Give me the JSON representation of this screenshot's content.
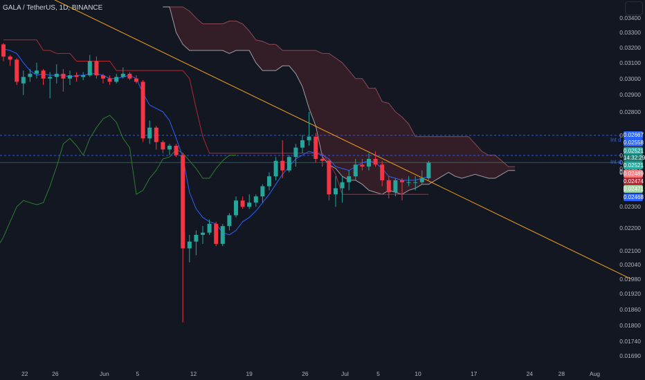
{
  "header": {
    "title": "GALA / TetherUS, 1D, BINANCE"
  },
  "colors": {
    "background": "#131722",
    "up": "#26a69a",
    "down": "#f23645",
    "trendline": "#f7a21b",
    "cloud": "#3a1f27",
    "hline": "#2962ff"
  },
  "chart_data": {
    "type": "candlestick",
    "title": "GALA / TetherUS, 1D, BINANCE",
    "y_scale": "log",
    "ylim": [
      0.01665,
      0.0348
    ],
    "y_ticks": [
      "0.03400",
      "0.03300",
      "0.03200",
      "0.03100",
      "0.03000",
      "0.02900",
      "0.02800",
      "0.02667",
      "0.02558",
      "0.02521",
      "0.02489",
      "0.02474",
      "0.02471",
      "0.02468",
      "0.02300",
      "0.02200",
      "0.02100",
      "0.02040",
      "0.01980",
      "0.01920",
      "0.01860",
      "0.01800",
      "0.01740",
      "0.01690"
    ],
    "x_ticks": [
      "22",
      "26",
      "Jun",
      "5",
      "12",
      "19",
      "26",
      "Jul",
      "5",
      "10",
      "17",
      "24",
      "28",
      "Aug"
    ],
    "price_tags": [
      {
        "text": "0.02667",
        "color": "#2962ff"
      },
      {
        "text": "0.02558",
        "color": "#2962ff"
      },
      {
        "text": "0.02521",
        "color": "#26a69a"
      },
      {
        "text": "14:32:29",
        "color": "#1f7a72"
      },
      {
        "text": "0.02521",
        "color": "#26a69a"
      },
      {
        "text": "0.02489",
        "color": "#f77c80"
      },
      {
        "text": "0.02474",
        "color": "#b22833"
      },
      {
        "text": "0.02471",
        "color": "#a5d6a7"
      },
      {
        "text": "0.02468",
        "color": "#2962ff"
      }
    ],
    "hline_labels": [
      "Int d",
      "Int d"
    ],
    "candles": [
      {
        "o": 0.0322,
        "h": 0.0323,
        "l": 0.0311,
        "c": 0.0314
      },
      {
        "o": 0.0314,
        "h": 0.0315,
        "l": 0.0308,
        "c": 0.0312
      },
      {
        "o": 0.0312,
        "h": 0.0313,
        "l": 0.0296,
        "c": 0.0298
      },
      {
        "o": 0.0297,
        "h": 0.0305,
        "l": 0.029,
        "c": 0.0301
      },
      {
        "o": 0.0301,
        "h": 0.0306,
        "l": 0.0298,
        "c": 0.0303
      },
      {
        "o": 0.0303,
        "h": 0.031,
        "l": 0.03,
        "c": 0.0305
      },
      {
        "o": 0.0305,
        "h": 0.0306,
        "l": 0.0296,
        "c": 0.03
      },
      {
        "o": 0.03,
        "h": 0.0304,
        "l": 0.0288,
        "c": 0.0301
      },
      {
        "o": 0.0301,
        "h": 0.0309,
        "l": 0.0297,
        "c": 0.0303
      },
      {
        "o": 0.0303,
        "h": 0.0306,
        "l": 0.0292,
        "c": 0.03
      },
      {
        "o": 0.03,
        "h": 0.0305,
        "l": 0.0296,
        "c": 0.0302
      },
      {
        "o": 0.0302,
        "h": 0.0304,
        "l": 0.0298,
        "c": 0.0301
      },
      {
        "o": 0.0301,
        "h": 0.0304,
        "l": 0.0299,
        "c": 0.0302
      },
      {
        "o": 0.0302,
        "h": 0.0315,
        "l": 0.0301,
        "c": 0.0311
      },
      {
        "o": 0.0311,
        "h": 0.0314,
        "l": 0.03,
        "c": 0.0302
      },
      {
        "o": 0.0302,
        "h": 0.0303,
        "l": 0.0297,
        "c": 0.03
      },
      {
        "o": 0.03,
        "h": 0.0302,
        "l": 0.0296,
        "c": 0.0298
      },
      {
        "o": 0.0298,
        "h": 0.0303,
        "l": 0.0297,
        "c": 0.0301
      },
      {
        "o": 0.0301,
        "h": 0.0307,
        "l": 0.03,
        "c": 0.0303
      },
      {
        "o": 0.0303,
        "h": 0.0304,
        "l": 0.0299,
        "c": 0.03
      },
      {
        "o": 0.03,
        "h": 0.0302,
        "l": 0.0297,
        "c": 0.0298
      },
      {
        "o": 0.0298,
        "h": 0.0299,
        "l": 0.0263,
        "c": 0.0265
      },
      {
        "o": 0.0265,
        "h": 0.0275,
        "l": 0.0262,
        "c": 0.0271
      },
      {
        "o": 0.0271,
        "h": 0.0272,
        "l": 0.0259,
        "c": 0.0263
      },
      {
        "o": 0.0263,
        "h": 0.0264,
        "l": 0.0257,
        "c": 0.0259
      },
      {
        "o": 0.0259,
        "h": 0.0262,
        "l": 0.0256,
        "c": 0.0261
      },
      {
        "o": 0.0261,
        "h": 0.0262,
        "l": 0.0255,
        "c": 0.0256
      },
      {
        "o": 0.0256,
        "h": 0.0257,
        "l": 0.0181,
        "c": 0.0211
      },
      {
        "o": 0.0211,
        "h": 0.0217,
        "l": 0.0205,
        "c": 0.0214
      },
      {
        "o": 0.0214,
        "h": 0.0219,
        "l": 0.0208,
        "c": 0.0217
      },
      {
        "o": 0.0217,
        "h": 0.0221,
        "l": 0.0213,
        "c": 0.0218
      },
      {
        "o": 0.0218,
        "h": 0.0224,
        "l": 0.0217,
        "c": 0.0222
      },
      {
        "o": 0.0222,
        "h": 0.0223,
        "l": 0.0212,
        "c": 0.0213
      },
      {
        "o": 0.0213,
        "h": 0.0222,
        "l": 0.0212,
        "c": 0.0221
      },
      {
        "o": 0.0221,
        "h": 0.0227,
        "l": 0.0219,
        "c": 0.0226
      },
      {
        "o": 0.0226,
        "h": 0.0235,
        "l": 0.0225,
        "c": 0.0233
      },
      {
        "o": 0.0233,
        "h": 0.0235,
        "l": 0.0229,
        "c": 0.023
      },
      {
        "o": 0.023,
        "h": 0.0236,
        "l": 0.0229,
        "c": 0.0232
      },
      {
        "o": 0.0232,
        "h": 0.0236,
        "l": 0.023,
        "c": 0.0235
      },
      {
        "o": 0.0235,
        "h": 0.0241,
        "l": 0.0232,
        "c": 0.024
      },
      {
        "o": 0.024,
        "h": 0.0247,
        "l": 0.0238,
        "c": 0.0245
      },
      {
        "o": 0.0245,
        "h": 0.0255,
        "l": 0.0243,
        "c": 0.0253
      },
      {
        "o": 0.0253,
        "h": 0.0264,
        "l": 0.0244,
        "c": 0.0248
      },
      {
        "o": 0.0248,
        "h": 0.0256,
        "l": 0.0247,
        "c": 0.0255
      },
      {
        "o": 0.0255,
        "h": 0.0262,
        "l": 0.025,
        "c": 0.026
      },
      {
        "o": 0.026,
        "h": 0.0267,
        "l": 0.0257,
        "c": 0.0264
      },
      {
        "o": 0.0264,
        "h": 0.028,
        "l": 0.0261,
        "c": 0.0266
      },
      {
        "o": 0.0266,
        "h": 0.0268,
        "l": 0.0252,
        "c": 0.0254
      },
      {
        "o": 0.0254,
        "h": 0.0256,
        "l": 0.025,
        "c": 0.0253
      },
      {
        "o": 0.0253,
        "h": 0.0254,
        "l": 0.0233,
        "c": 0.0236
      },
      {
        "o": 0.0236,
        "h": 0.0245,
        "l": 0.023,
        "c": 0.0239
      },
      {
        "o": 0.0239,
        "h": 0.0245,
        "l": 0.0232,
        "c": 0.0242
      },
      {
        "o": 0.0242,
        "h": 0.0248,
        "l": 0.0238,
        "c": 0.0245
      },
      {
        "o": 0.0245,
        "h": 0.0254,
        "l": 0.0243,
        "c": 0.0251
      },
      {
        "o": 0.0251,
        "h": 0.0254,
        "l": 0.0248,
        "c": 0.025
      },
      {
        "o": 0.025,
        "h": 0.0257,
        "l": 0.0248,
        "c": 0.0254
      },
      {
        "o": 0.0254,
        "h": 0.0258,
        "l": 0.025,
        "c": 0.0251
      },
      {
        "o": 0.0251,
        "h": 0.0253,
        "l": 0.024,
        "c": 0.0243
      },
      {
        "o": 0.0243,
        "h": 0.0245,
        "l": 0.0234,
        "c": 0.0237
      },
      {
        "o": 0.0237,
        "h": 0.0244,
        "l": 0.0235,
        "c": 0.0243
      },
      {
        "o": 0.0243,
        "h": 0.0244,
        "l": 0.0233,
        "c": 0.0242
      },
      {
        "o": 0.0242,
        "h": 0.0245,
        "l": 0.024,
        "c": 0.0242
      },
      {
        "o": 0.0242,
        "h": 0.0245,
        "l": 0.0238,
        "c": 0.0242
      },
      {
        "o": 0.0242,
        "h": 0.0248,
        "l": 0.0241,
        "c": 0.0244
      },
      {
        "o": 0.0244,
        "h": 0.0253,
        "l": 0.0243,
        "c": 0.0252
      }
    ],
    "indicators": {
      "blue_line": [
        0.0319,
        0.0318,
        0.0316,
        0.031,
        0.0305,
        0.0302,
        0.0303,
        0.0302,
        0.0302,
        0.0302,
        0.0301,
        0.0302,
        0.0302,
        0.0303,
        0.0303,
        0.0302,
        0.03,
        0.03,
        0.0301,
        0.0302,
        0.03,
        0.0291,
        0.0284,
        0.0282,
        0.028,
        0.0275,
        0.0265,
        0.0255,
        0.0237,
        0.0229,
        0.0225,
        0.0223,
        0.0222,
        0.0218,
        0.0217,
        0.0219,
        0.0223,
        0.0225,
        0.0228,
        0.0232,
        0.0236,
        0.0241,
        0.0246,
        0.025,
        0.0254,
        0.0256,
        0.0258,
        0.0257,
        0.0256,
        0.0254,
        0.025,
        0.0249,
        0.0248,
        0.025,
        0.0252,
        0.0253,
        0.0252,
        0.0249,
        0.0245,
        0.0244,
        0.0243,
        0.0243,
        0.0243,
        0.0244,
        0.0245
      ],
      "red_line": [
        0.0325,
        0.0325,
        0.0325,
        0.0325,
        0.0325,
        0.0325,
        0.0318,
        0.0318,
        0.0316,
        0.0316,
        0.0316,
        0.0311,
        0.0311,
        0.0311,
        0.0311,
        0.0311,
        0.0311,
        0.0305,
        0.0305,
        0.0305,
        0.0305,
        0.0305,
        0.0305,
        0.0305,
        0.0305,
        0.0305,
        0.0305,
        0.0305,
        0.03,
        0.0282,
        0.0266,
        0.0257,
        0.0257,
        0.0257,
        0.0257,
        0.0257,
        0.0257,
        0.0257,
        0.0257,
        0.0257,
        0.0257,
        0.0257,
        0.0257,
        0.0257,
        0.0257,
        0.0257,
        0.0257,
        0.0257,
        0.0257,
        0.0252,
        0.0246,
        0.0236,
        0.0236,
        0.0236,
        0.0236,
        0.0236,
        0.0236,
        0.0236,
        0.0236,
        0.0236,
        0.0236,
        0.0236,
        0.0236,
        0.0236,
        0.0236
      ],
      "green_line": [
        0.0211,
        0.0216,
        0.0223,
        0.023,
        0.0233,
        0.0232,
        0.0231,
        0.0232,
        0.024,
        0.025,
        0.0262,
        0.0265,
        0.0261,
        0.0256,
        0.0265,
        0.0271,
        0.0276,
        0.0278,
        0.0274,
        0.0265,
        0.026,
        0.0236,
        0.0238,
        0.0244,
        0.0248,
        0.0254,
        0.0255,
        0.0259,
        0.0257,
        0.0253,
        0.0249,
        0.0244,
        0.0244,
        0.0249,
        0.0253,
        0.0256,
        0.0256
      ],
      "cloud_upper": [
        0.0348,
        0.0348,
        0.0348,
        0.0348,
        0.0345,
        0.034,
        0.0336,
        0.0336,
        0.0336,
        0.0336,
        0.0338,
        0.0338,
        0.0336,
        0.0331,
        0.0325,
        0.0324,
        0.0322,
        0.0322,
        0.0318,
        0.0318,
        0.0318,
        0.0318,
        0.0318,
        0.0318,
        0.0316,
        0.0316,
        0.0313,
        0.031,
        0.0305,
        0.03,
        0.03,
        0.0294,
        0.0294,
        0.0286,
        0.0285,
        0.028,
        0.0277,
        0.0273,
        0.0266,
        0.0266,
        0.0266,
        0.0266,
        0.0266,
        0.0266,
        0.0266,
        0.0266,
        0.0266,
        0.0262,
        0.0258,
        0.0256,
        0.0256,
        0.0253,
        0.025,
        0.025
      ],
      "cloud_lower": [
        0.0348,
        0.0348,
        0.033,
        0.0322,
        0.0318,
        0.0318,
        0.0318,
        0.0318,
        0.0318,
        0.0318,
        0.0316,
        0.0318,
        0.0318,
        0.0318,
        0.031,
        0.0305,
        0.0305,
        0.0305,
        0.0308,
        0.0308,
        0.0303,
        0.0295,
        0.0282,
        0.0272,
        0.0255,
        0.0251,
        0.0249,
        0.0245,
        0.0243,
        0.0243,
        0.0241,
        0.0238,
        0.0237,
        0.0236,
        0.0238,
        0.0237,
        0.0236,
        0.0238,
        0.0239,
        0.0241,
        0.0241,
        0.0243,
        0.0245,
        0.0247,
        0.0245,
        0.0244,
        0.0245,
        0.0246,
        0.0245,
        0.0244,
        0.0244,
        0.0246,
        0.0248,
        0.0248
      ]
    },
    "hlines": [
      0.02667,
      0.02558,
      0.02521
    ],
    "trendline": {
      "from_index": -11,
      "from_value": 0.04,
      "to_index": 94.5,
      "to_value": 0.0198
    }
  }
}
